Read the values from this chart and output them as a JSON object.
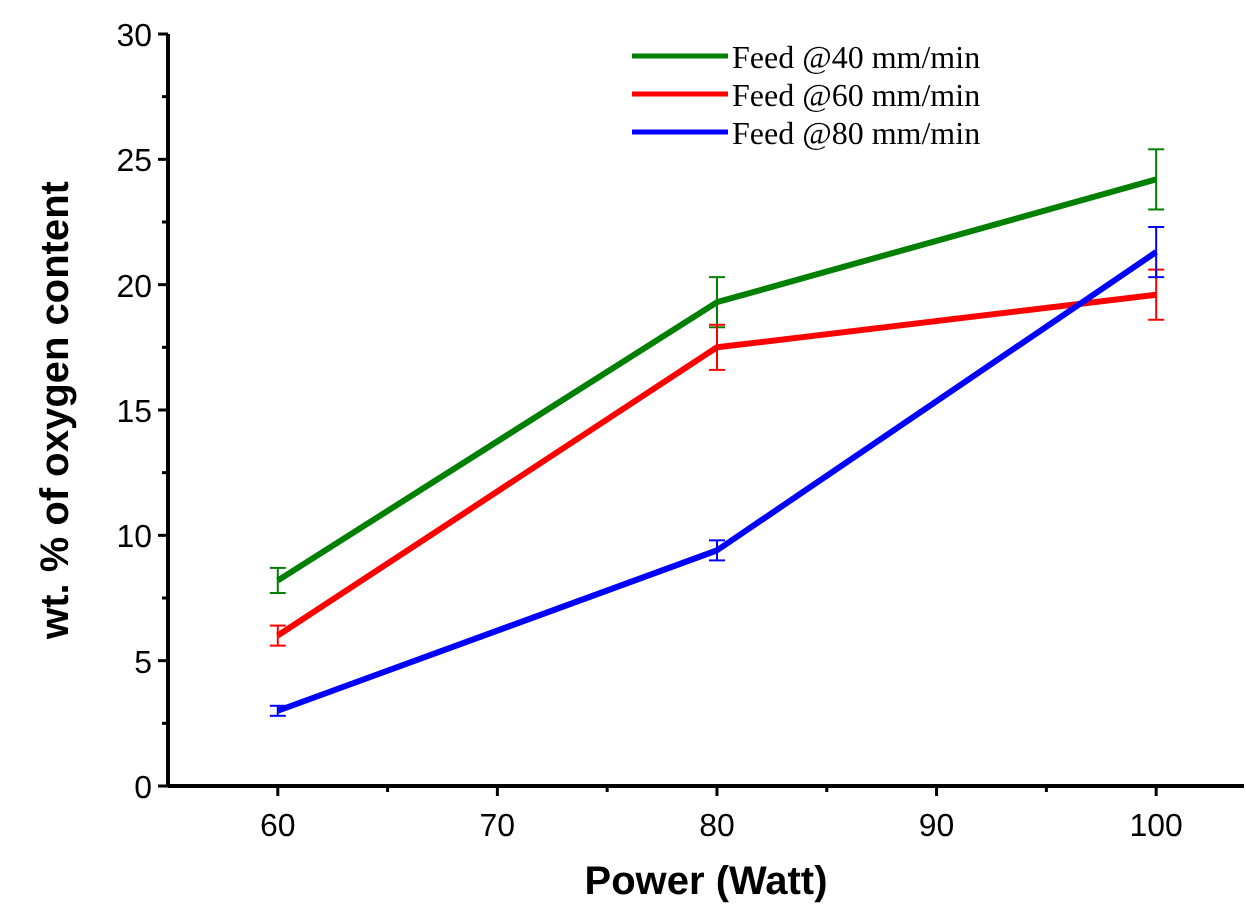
{
  "chart_data": {
    "type": "line",
    "xlabel": "Power (Watt)",
    "ylabel": "wt. % of oxygen content",
    "x": [
      60,
      80,
      100
    ],
    "xlim": [
      55,
      104
    ],
    "xticks": [
      60,
      {
        "value": 65,
        "label": null
      },
      70,
      {
        "value": 75,
        "label": null
      },
      80,
      {
        "value": 85,
        "label": null
      },
      90,
      {
        "value": 95,
        "label": null
      },
      100
    ],
    "ylim": [
      0,
      30
    ],
    "yticks": [
      0,
      {
        "value": 2.5,
        "label": null
      },
      5,
      {
        "value": 7.5,
        "label": null
      },
      10,
      {
        "value": 12.5,
        "label": null
      },
      15,
      {
        "value": 17.5,
        "label": null
      },
      20,
      {
        "value": 22.5,
        "label": null
      },
      25,
      {
        "value": 27.5,
        "label": null
      },
      30
    ],
    "series": [
      {
        "name": "Feed @40 mm/min",
        "color": "#008000",
        "values": [
          8.2,
          19.3,
          24.2
        ],
        "errors": [
          0.5,
          1.0,
          1.2
        ]
      },
      {
        "name": "Feed @60 mm/min",
        "color": "#ff0000",
        "values": [
          6.0,
          17.5,
          19.6
        ],
        "errors": [
          0.4,
          0.9,
          1.0
        ]
      },
      {
        "name": "Feed @80 mm/min",
        "color": "#0000ff",
        "values": [
          3.0,
          9.4,
          21.3
        ],
        "errors": [
          0.2,
          0.4,
          1.0
        ]
      }
    ],
    "grid": false,
    "legend": "top right",
    "marker": "none",
    "line_style": "solid"
  }
}
